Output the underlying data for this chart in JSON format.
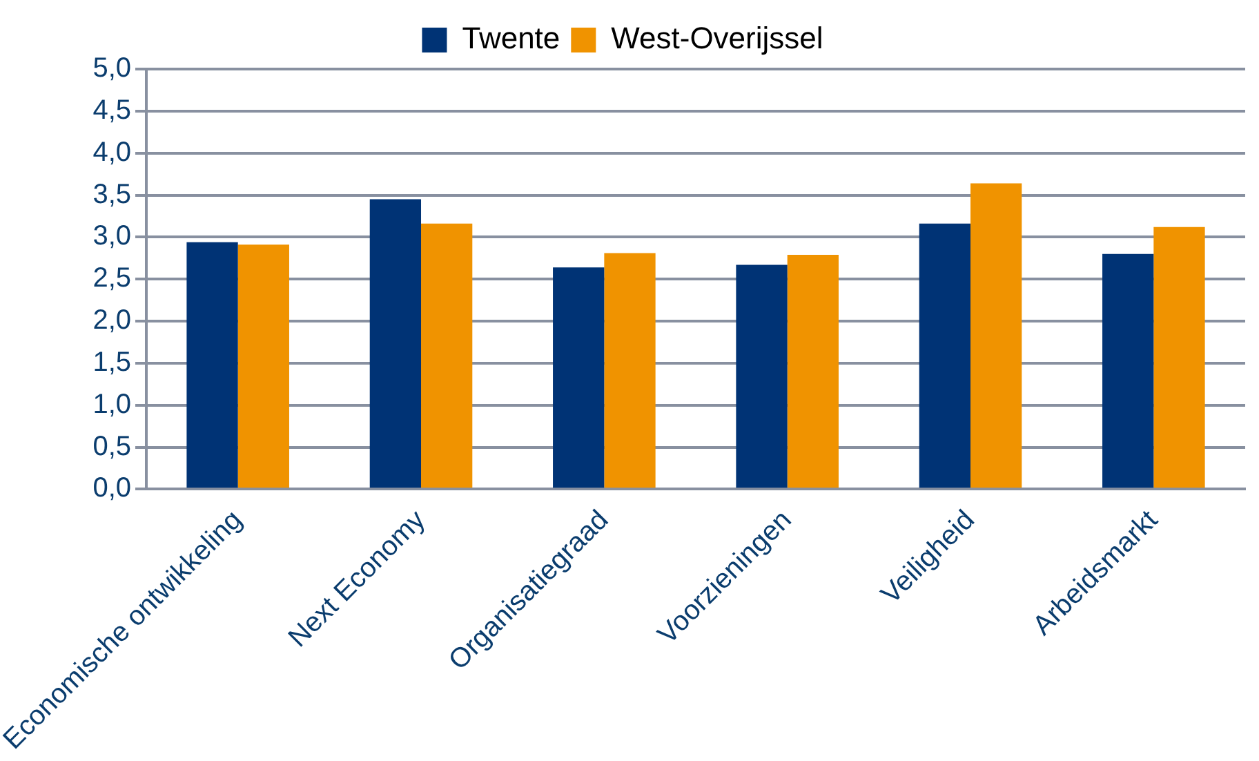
{
  "chart_data": {
    "type": "bar",
    "categories": [
      "Economische ontwikkeling",
      "Next Economy",
      "Organisatiegraad",
      "Voorzieningen",
      "Veiligheid",
      "Arbeidsmarkt"
    ],
    "series": [
      {
        "name": "Twente",
        "color": "#003375",
        "values": [
          2.94,
          3.45,
          2.64,
          2.67,
          3.16,
          2.8
        ]
      },
      {
        "name": "West-Overijssel",
        "color": "#f09300",
        "values": [
          2.91,
          3.16,
          2.81,
          2.79,
          3.64,
          3.12
        ]
      }
    ],
    "ylim": [
      0,
      5
    ],
    "yticks": [
      {
        "value": 0,
        "label": "0,0"
      },
      {
        "value": 0.5,
        "label": "0,5"
      },
      {
        "value": 1,
        "label": "1,0"
      },
      {
        "value": 1.5,
        "label": "1,5"
      },
      {
        "value": 2,
        "label": "2,0"
      },
      {
        "value": 2.5,
        "label": "2,5"
      },
      {
        "value": 3,
        "label": "3,0"
      },
      {
        "value": 3.5,
        "label": "3,5"
      },
      {
        "value": 4,
        "label": "4,0"
      },
      {
        "value": 4.5,
        "label": "4,5"
      },
      {
        "value": 5,
        "label": "5,0"
      }
    ],
    "grid": "y",
    "legend": "top"
  }
}
